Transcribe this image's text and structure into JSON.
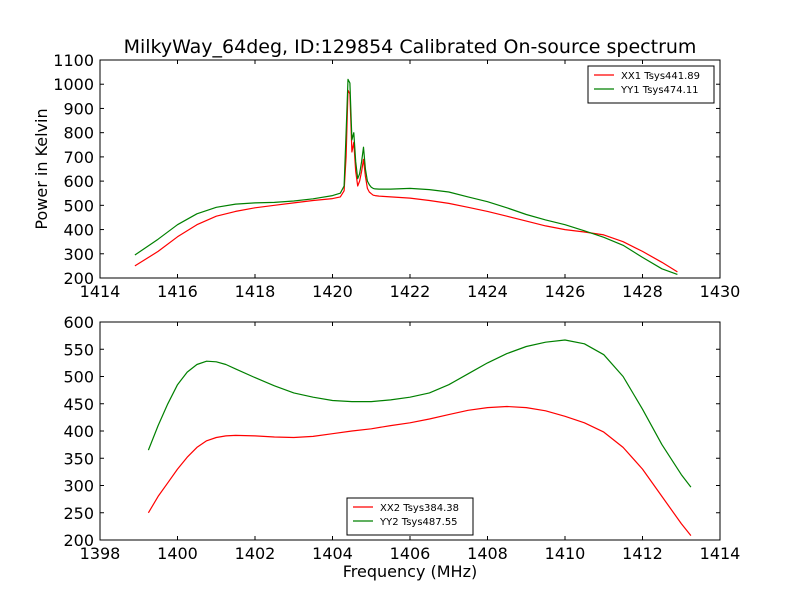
{
  "chart_data": [
    {
      "type": "line",
      "title": "MilkyWay_64deg, ID:129854 Calibrated On-source spectrum",
      "xlabel": "",
      "ylabel": "Power in Kelvin",
      "xlim": [
        1414,
        1430
      ],
      "ylim": [
        200,
        1100
      ],
      "xticks": [
        "1414",
        "1416",
        "1418",
        "1420",
        "1422",
        "1424",
        "1426",
        "1428",
        "1430"
      ],
      "yticks": [
        "200",
        "300",
        "400",
        "500",
        "600",
        "700",
        "800",
        "900",
        "1000",
        "1100"
      ],
      "grid": false,
      "legend_position": "top-right",
      "series": [
        {
          "name": "XX1 Tsys441.89",
          "color": "#ff0000",
          "x": [
            1414.9,
            1415.5,
            1416.0,
            1416.5,
            1417.0,
            1417.5,
            1418.0,
            1418.5,
            1419.0,
            1419.5,
            1420.0,
            1420.2,
            1420.3,
            1420.35,
            1420.4,
            1420.45,
            1420.5,
            1420.55,
            1420.6,
            1420.65,
            1420.7,
            1420.75,
            1420.8,
            1420.85,
            1420.9,
            1420.95,
            1421.0,
            1421.05,
            1421.1,
            1421.2,
            1421.5,
            1422.0,
            1422.5,
            1423.0,
            1423.5,
            1424.0,
            1424.5,
            1425.0,
            1425.5,
            1426.0,
            1426.5,
            1427.0,
            1427.5,
            1428.0,
            1428.5,
            1428.9
          ],
          "y": [
            250,
            310,
            370,
            420,
            455,
            475,
            490,
            500,
            510,
            520,
            528,
            535,
            560,
            700,
            975,
            960,
            720,
            760,
            640,
            580,
            600,
            640,
            690,
            620,
            570,
            555,
            548,
            542,
            540,
            538,
            535,
            530,
            520,
            508,
            492,
            475,
            455,
            435,
            415,
            400,
            390,
            378,
            350,
            310,
            265,
            225
          ]
        },
        {
          "name": "YY1 Tsys474.11",
          "color": "#008000",
          "x": [
            1414.9,
            1415.5,
            1416.0,
            1416.5,
            1417.0,
            1417.5,
            1418.0,
            1418.5,
            1419.0,
            1419.5,
            1420.0,
            1420.2,
            1420.3,
            1420.35,
            1420.4,
            1420.45,
            1420.5,
            1420.55,
            1420.6,
            1420.65,
            1420.7,
            1420.75,
            1420.8,
            1420.85,
            1420.9,
            1420.95,
            1421.0,
            1421.05,
            1421.1,
            1421.2,
            1421.5,
            1422.0,
            1422.5,
            1423.0,
            1423.5,
            1424.0,
            1424.5,
            1425.0,
            1425.5,
            1426.0,
            1426.5,
            1427.0,
            1427.5,
            1428.0,
            1428.5,
            1428.9
          ],
          "y": [
            295,
            360,
            420,
            465,
            492,
            505,
            510,
            512,
            518,
            527,
            540,
            550,
            580,
            800,
            1020,
            1005,
            770,
            800,
            680,
            610,
            630,
            680,
            740,
            650,
            600,
            585,
            575,
            570,
            568,
            567,
            567,
            570,
            565,
            555,
            535,
            515,
            490,
            462,
            440,
            420,
            395,
            368,
            335,
            285,
            238,
            215
          ]
        }
      ]
    },
    {
      "type": "line",
      "title": "",
      "xlabel": "Frequency (MHz)",
      "ylabel": "",
      "xlim": [
        1398,
        1414
      ],
      "ylim": [
        200,
        600
      ],
      "xticks": [
        "1398",
        "1400",
        "1402",
        "1404",
        "1406",
        "1408",
        "1410",
        "1412",
        "1414"
      ],
      "yticks": [
        "200",
        "250",
        "300",
        "350",
        "400",
        "450",
        "500",
        "550",
        "600"
      ],
      "grid": false,
      "legend_position": "bottom-center",
      "series": [
        {
          "name": "XX2 Tsys384.38",
          "color": "#ff0000",
          "x": [
            1399.25,
            1399.5,
            1399.75,
            1400.0,
            1400.25,
            1400.5,
            1400.75,
            1401.0,
            1401.25,
            1401.5,
            1402.0,
            1402.5,
            1403.0,
            1403.5,
            1404.0,
            1404.5,
            1405.0,
            1405.5,
            1406.0,
            1406.5,
            1407.0,
            1407.5,
            1408.0,
            1408.5,
            1409.0,
            1409.5,
            1410.0,
            1410.5,
            1411.0,
            1411.5,
            1412.0,
            1412.5,
            1413.0,
            1413.25
          ],
          "y": [
            250,
            280,
            305,
            330,
            352,
            370,
            382,
            388,
            391,
            392,
            391,
            389,
            388,
            390,
            395,
            400,
            404,
            410,
            415,
            422,
            430,
            438,
            443,
            445,
            443,
            437,
            427,
            415,
            398,
            370,
            330,
            280,
            230,
            208
          ]
        },
        {
          "name": "YY2 Tsys487.55",
          "color": "#008000",
          "x": [
            1399.25,
            1399.5,
            1399.75,
            1400.0,
            1400.25,
            1400.5,
            1400.75,
            1401.0,
            1401.25,
            1401.5,
            1402.0,
            1402.5,
            1403.0,
            1403.5,
            1404.0,
            1404.5,
            1405.0,
            1405.5,
            1406.0,
            1406.5,
            1407.0,
            1407.5,
            1408.0,
            1408.5,
            1409.0,
            1409.5,
            1410.0,
            1410.5,
            1411.0,
            1411.5,
            1412.0,
            1412.5,
            1413.0,
            1413.25
          ],
          "y": [
            365,
            410,
            450,
            485,
            508,
            522,
            528,
            527,
            522,
            514,
            498,
            483,
            470,
            462,
            456,
            454,
            454,
            457,
            462,
            470,
            485,
            505,
            525,
            542,
            555,
            563,
            567,
            560,
            540,
            500,
            440,
            375,
            320,
            297
          ]
        }
      ]
    }
  ]
}
